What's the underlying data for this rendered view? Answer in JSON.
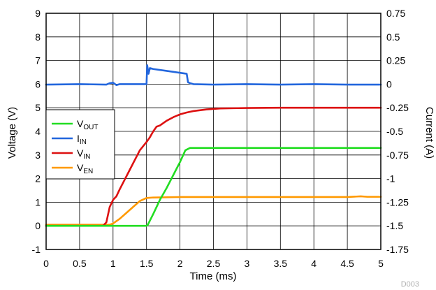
{
  "chart_data": {
    "type": "line",
    "figure_id": "D003",
    "xlabel": "Time (ms)",
    "ylabel_left": "Voltage (V)",
    "ylabel_right": "Current (A)",
    "xlim": [
      0,
      5
    ],
    "ylim_left": [
      -1,
      9
    ],
    "ylim_right": [
      -1.75,
      0.75
    ],
    "x_ticks": [
      "0",
      "0.5",
      "1",
      "1.5",
      "2",
      "2.5",
      "3",
      "3.5",
      "4",
      "4.5",
      "5"
    ],
    "y_left_ticks": [
      "-1",
      "0",
      "1",
      "2",
      "3",
      "4",
      "5",
      "6",
      "7",
      "8",
      "9"
    ],
    "y_right_ticks": [
      "-1.75",
      "-1.5",
      "-1.25",
      "-1",
      "-0.75",
      "-0.5",
      "-0.25",
      "0",
      "0.25",
      "0.5",
      "0.75"
    ],
    "grid": true,
    "legend_position": "middle-left",
    "series": [
      {
        "name": "VOUT",
        "label_main": "V",
        "label_sub": "OUT",
        "color": "#22dd22",
        "axis": "left",
        "x": [
          0,
          1.5,
          1.52,
          1.6,
          1.7,
          1.8,
          1.9,
          2.0,
          2.08,
          2.15,
          2.3,
          2.5,
          3.0,
          4.0,
          5.0
        ],
        "y": [
          0,
          0,
          0.05,
          0.5,
          1.1,
          1.6,
          2.15,
          2.7,
          3.2,
          3.3,
          3.3,
          3.3,
          3.3,
          3.3,
          3.3
        ]
      },
      {
        "name": "IIN",
        "label_main": "I",
        "label_sub": "IN",
        "color": "#2266dd",
        "axis": "right",
        "x": [
          0,
          0.5,
          0.9,
          0.95,
          1.0,
          1.05,
          1.1,
          1.5,
          1.51,
          1.53,
          1.55,
          1.6,
          1.8,
          2.0,
          2.1,
          2.12,
          2.15,
          2.2,
          2.5,
          3.0,
          3.5,
          4.0,
          4.5,
          5.0
        ],
        "y": [
          -0.005,
          0.0,
          -0.005,
          0.01,
          0.015,
          -0.01,
          0.0,
          0.0,
          0.2,
          0.11,
          0.17,
          0.16,
          0.14,
          0.12,
          0.11,
          0.02,
          0.01,
          0.0,
          -0.005,
          0.0,
          -0.005,
          0.0,
          -0.005,
          -0.005
        ]
      },
      {
        "name": "VIN",
        "label_main": "V",
        "label_sub": "IN",
        "color": "#dd1111",
        "axis": "left",
        "x": [
          0,
          0.85,
          0.9,
          0.95,
          1.0,
          1.05,
          1.1,
          1.2,
          1.3,
          1.4,
          1.5,
          1.55,
          1.6,
          1.65,
          1.7,
          1.75,
          1.8,
          1.9,
          2.0,
          2.1,
          2.2,
          2.4,
          2.6,
          2.8,
          3.0,
          3.5,
          4.0,
          5.0
        ],
        "y": [
          0,
          0,
          0.15,
          0.8,
          1.1,
          1.25,
          1.55,
          2.1,
          2.65,
          3.2,
          3.55,
          3.75,
          4.0,
          4.2,
          4.25,
          4.35,
          4.45,
          4.6,
          4.72,
          4.8,
          4.86,
          4.93,
          4.97,
          4.98,
          4.99,
          5.0,
          5.0,
          5.0
        ]
      },
      {
        "name": "VEN",
        "label_main": "V",
        "label_sub": "EN",
        "color": "#ff9900",
        "axis": "left",
        "x": [
          0,
          0.95,
          1.0,
          1.1,
          1.2,
          1.3,
          1.4,
          1.5,
          1.6,
          2.0,
          2.5,
          3.0,
          3.5,
          4.0,
          4.5,
          4.7,
          4.8,
          5.0
        ],
        "y": [
          0.05,
          0.05,
          0.1,
          0.3,
          0.55,
          0.8,
          1.05,
          1.18,
          1.2,
          1.22,
          1.22,
          1.22,
          1.22,
          1.22,
          1.22,
          1.25,
          1.23,
          1.23
        ]
      }
    ]
  }
}
